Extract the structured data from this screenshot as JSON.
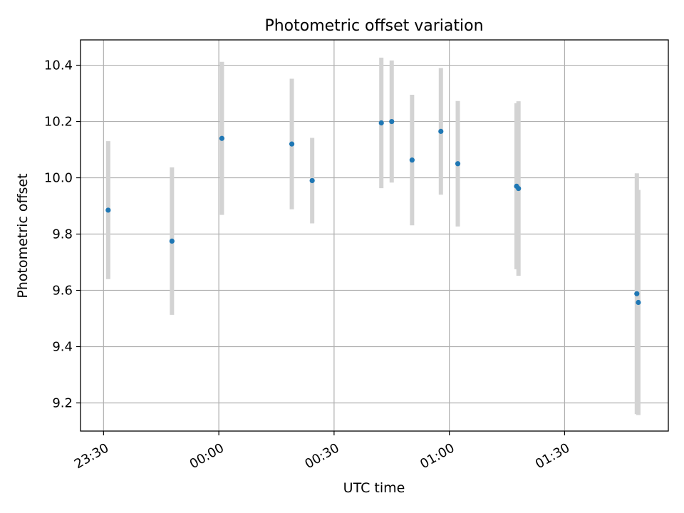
{
  "chart_data": {
    "type": "scatter",
    "title": "Photometric offset variation",
    "xlabel": "UTC time",
    "ylabel": "Photometric offset",
    "x_axis": {
      "ticks": [
        "23:30",
        "00:00",
        "00:30",
        "01:00",
        "01:30"
      ],
      "tick_values": [
        -30,
        0,
        30,
        60,
        90
      ],
      "range": [
        -36,
        117
      ],
      "unit": "minutes relative to 00:00 UTC"
    },
    "y_axis": {
      "ticks": [
        "9.2",
        "9.4",
        "9.6",
        "9.8",
        "10.0",
        "10.2",
        "10.4"
      ],
      "tick_values": [
        9.2,
        9.4,
        9.6,
        9.8,
        10.0,
        10.2,
        10.4
      ],
      "range": [
        9.1,
        10.49
      ]
    },
    "grid": true,
    "colors": {
      "point": "#1f77b4",
      "errorbar": "#d3d3d3",
      "grid": "#b0b0b0"
    },
    "points": [
      {
        "time": "23:31",
        "x": -28.8,
        "y": 9.885,
        "err": 0.245
      },
      {
        "time": "23:48",
        "x": -12.2,
        "y": 9.775,
        "err": 0.262
      },
      {
        "time": "00:01",
        "x": 0.8,
        "y": 10.14,
        "err": 0.272
      },
      {
        "time": "00:19",
        "x": 19.0,
        "y": 10.12,
        "err": 0.232
      },
      {
        "time": "00:24",
        "x": 24.3,
        "y": 9.99,
        "err": 0.152
      },
      {
        "time": "00:42",
        "x": 42.3,
        "y": 10.195,
        "err": 0.232
      },
      {
        "time": "00:45",
        "x": 45.0,
        "y": 10.2,
        "err": 0.217
      },
      {
        "time": "00:50",
        "x": 50.3,
        "y": 10.063,
        "err": 0.232
      },
      {
        "time": "00:58",
        "x": 57.8,
        "y": 10.165,
        "err": 0.225
      },
      {
        "time": "01:02",
        "x": 62.2,
        "y": 10.05,
        "err": 0.223
      },
      {
        "time": "01:17",
        "x": 77.5,
        "y": 9.97,
        "err": 0.295
      },
      {
        "time": "01:18",
        "x": 78.0,
        "y": 9.962,
        "err": 0.31
      },
      {
        "time": "01:49",
        "x": 108.8,
        "y": 9.588,
        "err": 0.428
      },
      {
        "time": "01:49",
        "x": 109.2,
        "y": 9.557,
        "err": 0.4
      }
    ]
  }
}
